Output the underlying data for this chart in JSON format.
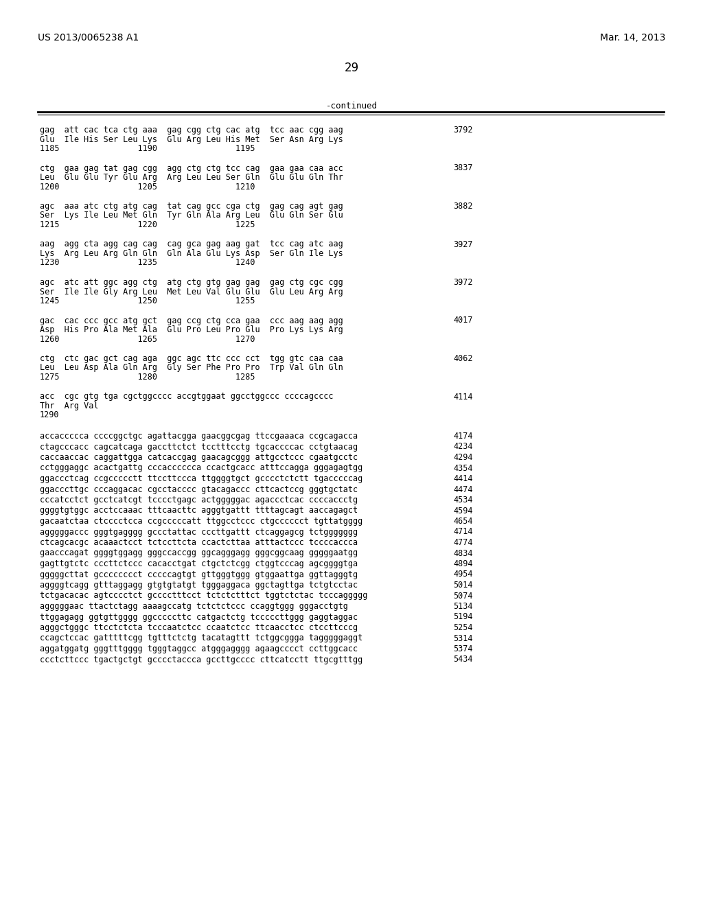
{
  "header_left": "US 2013/0065238 A1",
  "header_right": "Mar. 14, 2013",
  "page_number": "29",
  "continued_text": "-continued",
  "background_color": "#ffffff",
  "text_color": "#000000",
  "sequence_blocks": [
    {
      "lines": [
        "gag  att cac tca ctg aaa  gag cgg ctg cac atg  tcc aac cgg aag",
        "Glu  Ile His Ser Leu Lys  Glu Arg Leu His Met  Ser Asn Arg Lys",
        "1185                1190                1195"
      ],
      "num_right": "3792"
    },
    {
      "lines": [
        "ctg  gaa gag tat gag cgg  agg ctg ctg tcc cag  gaa gaa caa acc",
        "Leu  Glu Glu Tyr Glu Arg  Arg Leu Leu Ser Gln  Glu Glu Gln Thr",
        "1200                1205                1210"
      ],
      "num_right": "3837"
    },
    {
      "lines": [
        "agc  aaa atc ctg atg cag  tat cag gcc cga ctg  gag cag agt gag",
        "Ser  Lys Ile Leu Met Gln  Tyr Gln Ala Arg Leu  Glu Gln Ser Glu",
        "1215                1220                1225"
      ],
      "num_right": "3882"
    },
    {
      "lines": [
        "aag  agg cta agg cag cag  cag gca gag aag gat  tcc cag atc aag",
        "Lys  Arg Leu Arg Gln Gln  Gln Ala Glu Lys Asp  Ser Gln Ile Lys",
        "1230                1235                1240"
      ],
      "num_right": "3927"
    },
    {
      "lines": [
        "agc  atc att ggc agg ctg  atg ctg gtg gag gag  gag ctg cgc cgg",
        "Ser  Ile Ile Gly Arg Leu  Met Leu Val Glu Glu  Glu Leu Arg Arg",
        "1245                1250                1255"
      ],
      "num_right": "3972"
    },
    {
      "lines": [
        "gac  cac ccc gcc atg gct  gag ccg ctg cca gaa  ccc aag aag agg",
        "Asp  His Pro Ala Met Ala  Glu Pro Leu Pro Glu  Pro Lys Lys Arg",
        "1260                1265                1270"
      ],
      "num_right": "4017"
    },
    {
      "lines": [
        "ctg  ctc gac gct cag aga  ggc agc ttc ccc cct  tgg gtc caa caa",
        "Leu  Leu Asp Ala Gln Arg  Gly Ser Phe Pro Pro  Trp Val Gln Gln",
        "1275                1280                1285"
      ],
      "num_right": "4062"
    },
    {
      "lines": [
        "acc  cgc gtg tga cgctggcccc accgtggaat ggcctggccc ccccagcccc",
        "Thr  Arg Val",
        "1290"
      ],
      "num_right": "4114"
    }
  ],
  "single_lines": [
    {
      "text": "accaccccca ccccggctgc agattacgga gaacggcgag ttccgaaaca ccgcagacca",
      "num": "4174"
    },
    {
      "text": "ctagcccacc cagcatcaga gaccttctct tcctttcctg tgcaccccac cctgtaacag",
      "num": "4234"
    },
    {
      "text": "caccaaccac caggattgga catcaccgag gaacagcggg attgcctccc cgaatgcctc",
      "num": "4294"
    },
    {
      "text": "cctgggaggc acactgattg cccacccccca ccactgcacc atttccagga gggagagtgg",
      "num": "4354"
    },
    {
      "text": "ggaccctcag ccgccccctt ttccttccca ttggggtgct gcccctctctt tgacccccag",
      "num": "4414"
    },
    {
      "text": "ggacccttgc cccaggacac cgcctacccc gtacagaccc cttcactccg gggtgctatc",
      "num": "4474"
    },
    {
      "text": "cccatcctct gcctcatcgt tcccctgagc actgggggac agaccctcac ccccaccctg",
      "num": "4534"
    },
    {
      "text": "ggggtgtggc acctccaaac tttcaacttc agggtgattt ttttagcagt aaccagagct",
      "num": "4594"
    },
    {
      "text": "gacaatctaa ctcccctcca ccgcccccatt ttggcctccc ctgcccccct tgttatgggg",
      "num": "4654"
    },
    {
      "text": "agggggaccc gggtgagggg gccctattac cccttgattt ctcaggagcg tctggggggg",
      "num": "4714"
    },
    {
      "text": "ctcagcacgc acaaactcct tctccttcta ccactcttaa atttactccc tccccaccca",
      "num": "4774"
    },
    {
      "text": "gaacccagat ggggtggagg gggccaccgg ggcagggagg gggcggcaag gggggaatgg",
      "num": "4834"
    },
    {
      "text": "gagttgtctc cccttctccc cacacctgat ctgctctcgg ctggtcccag agcggggtga",
      "num": "4894"
    },
    {
      "text": "gggggcttat gcccccccct cccccagtgt gttgggtggg gtggaattga ggttagggtg",
      "num": "4954"
    },
    {
      "text": "aggggtcagg gtttaggagg gtgtgtatgt tgggaggaca ggctagttga tctgtcctac",
      "num": "5014"
    },
    {
      "text": "tctgacacac agtcccctct gcccctttcct tctctctttct tggtctctac tcccaggggg",
      "num": "5074"
    },
    {
      "text": "agggggaac ttactctagg aaaagccatg tctctctccc ccaggtggg gggacctgtg",
      "num": "5134"
    },
    {
      "text": "ttggagagg ggtgttgggg ggcccccttc catgactctg tcccccttggg gaggtaggac",
      "num": "5194"
    },
    {
      "text": "agggctgggc ttcctctcta tcccaatctcc ccaatctcc ttcaacctcc ctccttcccg",
      "num": "5254"
    },
    {
      "text": "ccagctccac gatttttcgg tgtttctctg tacatagttt tctggcggga tagggggaggt",
      "num": "5314"
    },
    {
      "text": "aggatggatg gggtttgggg tgggtaggcc atgggagggg agaagcccct ccttggcacc",
      "num": "5374"
    },
    {
      "text": "ccctcttccc tgactgctgt gcccctaccca gccttgcccc cttcatcctt ttgcgtttgg",
      "num": "5434"
    }
  ]
}
